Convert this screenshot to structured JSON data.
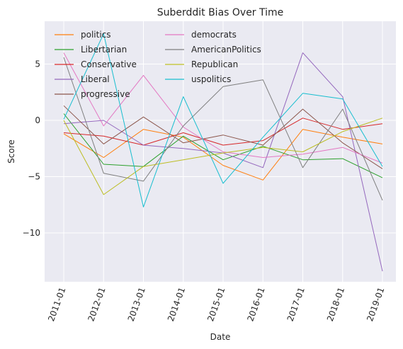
{
  "chart_data": {
    "type": "line",
    "title": "Suberddit Bias Over Time",
    "xlabel": "Date",
    "ylabel": "Score",
    "categories": [
      "2011-01",
      "2012-01",
      "2013-01",
      "2014-01",
      "2015-01",
      "2016-01",
      "2017-01",
      "2018-01",
      "2019-01"
    ],
    "ylim": [
      -14.0,
      8.5
    ],
    "yticks": [
      -10,
      -5,
      0,
      5
    ],
    "ytick_labels": [
      "−10",
      "−5",
      "0",
      "5"
    ],
    "grid": true,
    "legend_position": "top-left",
    "legend_columns": 2,
    "series": [
      {
        "name": "politics",
        "color": "#ff7f0e",
        "values": [
          -1.2,
          -3.3,
          -0.8,
          -1.5,
          -4.0,
          -5.3,
          -0.8,
          -1.5,
          -2.1
        ]
      },
      {
        "name": "Libertarian",
        "color": "#2ca02c",
        "values": [
          0.6,
          -3.9,
          -4.1,
          -1.4,
          -3.5,
          -2.3,
          -3.5,
          -3.4,
          -5.1
        ]
      },
      {
        "name": "Conservative",
        "color": "#d62728",
        "values": [
          -1.1,
          -1.4,
          -2.2,
          -1.1,
          -2.2,
          -1.8,
          0.2,
          -0.8,
          -0.3
        ]
      },
      {
        "name": "Liberal",
        "color": "#9467bd",
        "values": [
          -0.3,
          0.0,
          -2.2,
          -2.5,
          -2.9,
          -4.2,
          6.0,
          2.1,
          -13.4
        ]
      },
      {
        "name": "progressive",
        "color": "#8c564b",
        "values": [
          1.3,
          -2.1,
          0.3,
          -2.0,
          -1.3,
          -2.2,
          1.0,
          -2.0,
          -4.3
        ]
      },
      {
        "name": "democrats",
        "color": "#e377c2",
        "values": [
          6.0,
          -0.5,
          4.0,
          -0.6,
          -2.8,
          -3.3,
          -3.0,
          -2.4,
          -3.8
        ]
      },
      {
        "name": "AmericanPolitics",
        "color": "#7f7f7f",
        "values": [
          5.6,
          -4.7,
          -5.4,
          -0.5,
          3.0,
          3.6,
          -4.2,
          1.0,
          -7.1
        ]
      },
      {
        "name": "Republican",
        "color": "#bcbd22",
        "values": [
          0.0,
          -6.6,
          -4.1,
          -3.5,
          -2.9,
          -2.4,
          -2.8,
          -1.0,
          0.2
        ]
      },
      {
        "name": "uspolitics",
        "color": "#17becf",
        "values": [
          0.1,
          7.7,
          -7.7,
          2.1,
          -5.6,
          -1.5,
          2.4,
          1.9,
          -4.1
        ]
      }
    ]
  }
}
